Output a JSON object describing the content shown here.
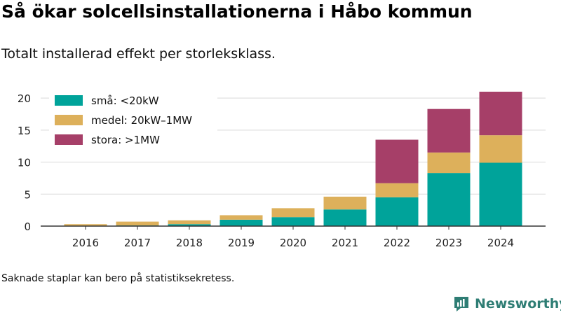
{
  "title": "Så ökar solcellsinstallationerna i Håbo kommun",
  "subtitle": "Totalt installerad effekt per storleksklass.",
  "footnote": "Saknade staplar kan bero på statistiksekretess.",
  "brand": {
    "name": "Newsworthy",
    "logo_icon": "newsworthy-logo-icon",
    "color": "#2e7d74"
  },
  "chart_data": {
    "type": "bar",
    "stacked": true,
    "categories": [
      "2016",
      "2017",
      "2018",
      "2019",
      "2020",
      "2021",
      "2022",
      "2023",
      "2024"
    ],
    "series": [
      {
        "name": "små: <20kW",
        "color": "#00a39a",
        "values": [
          0.05,
          0.1,
          0.3,
          1.0,
          1.4,
          2.6,
          4.5,
          8.3,
          9.9
        ]
      },
      {
        "name": "medel: 20kW–1MW",
        "color": "#ddb05b",
        "values": [
          0.25,
          0.6,
          0.6,
          0.7,
          1.4,
          2.0,
          2.2,
          3.2,
          4.3
        ]
      },
      {
        "name": "stora: >1MW",
        "color": "#a63f68",
        "values": [
          0,
          0,
          0,
          0,
          0,
          0,
          6.8,
          6.8,
          6.8
        ]
      }
    ],
    "ylim": [
      0,
      21
    ],
    "yticks": [
      0,
      5,
      10,
      15,
      20
    ],
    "xlabel": "",
    "ylabel": "",
    "grid": true,
    "legend_position": "top-left"
  }
}
